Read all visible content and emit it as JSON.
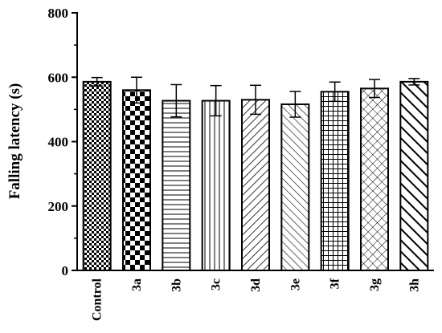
{
  "chart_data": {
    "type": "bar",
    "title": "",
    "xlabel": "",
    "ylabel": "Falling latency (s)",
    "ylim": [
      0,
      800
    ],
    "yticks": [
      0,
      200,
      400,
      600,
      800
    ],
    "ytick_labels": [
      "0",
      "200",
      "400",
      "600",
      "800"
    ],
    "grid": false,
    "legend": "none",
    "categories": [
      "Control",
      "3a",
      "3b",
      "3c",
      "3d",
      "3e",
      "3f",
      "3g",
      "3h"
    ],
    "values": [
      586,
      560,
      527,
      527,
      530,
      516,
      555,
      565,
      586
    ],
    "errors": [
      13,
      40,
      50,
      47,
      45,
      40,
      30,
      28,
      10
    ],
    "patterns": [
      "fine-checker",
      "checker",
      "horizontal-lines",
      "vertical-lines",
      "diagonal-up",
      "diagonal-down",
      "grid",
      "diagonal-crosshatch",
      "thick-diagonal-down"
    ],
    "colors": {
      "bar_fill": "#ffffff",
      "stroke": "#000000"
    }
  }
}
